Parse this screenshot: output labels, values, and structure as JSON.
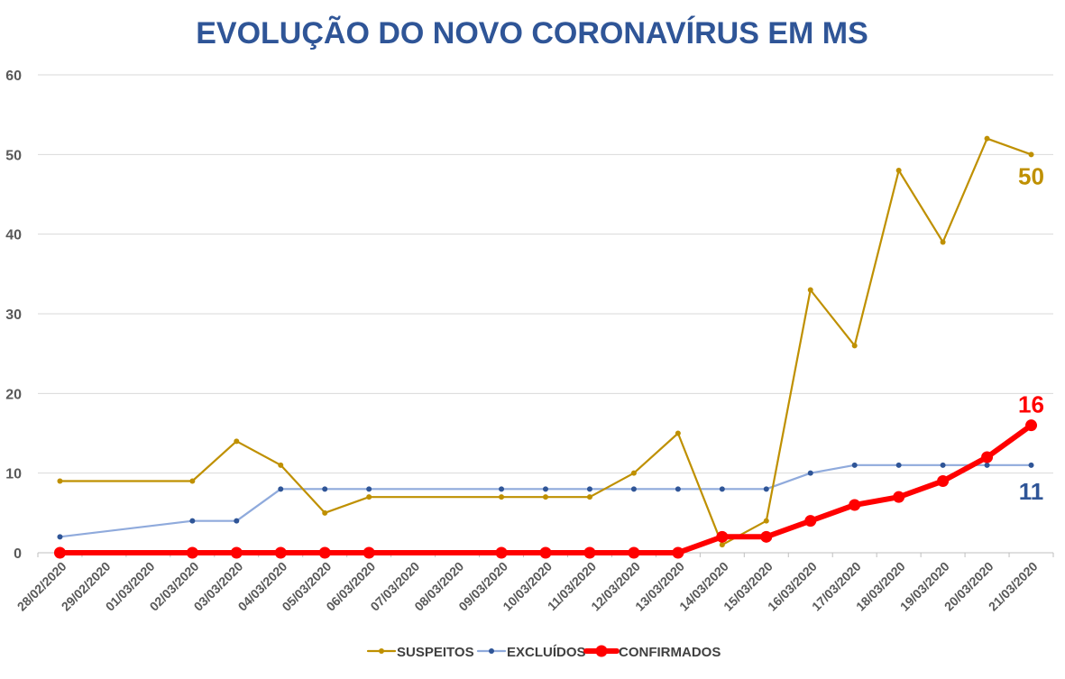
{
  "chart_data": {
    "type": "line",
    "title": "EVOLUÇÃO DO NOVO CORONAVÍRUS EM MS",
    "xlabel": "",
    "ylabel": "",
    "ylim": [
      0,
      60
    ],
    "yticks": [
      0,
      10,
      20,
      30,
      40,
      50,
      60
    ],
    "grid": true,
    "legend_position": "bottom",
    "categories": [
      "28/02/2020",
      "29/02/2020",
      "01/03/2020",
      "02/03/2020",
      "03/03/2020",
      "04/03/2020",
      "05/03/2020",
      "06/03/2020",
      "07/03/2020",
      "08/03/2020",
      "09/03/2020",
      "10/03/2020",
      "11/03/2020",
      "12/03/2020",
      "13/03/2020",
      "14/03/2020",
      "15/03/2020",
      "16/03/2020",
      "17/03/2020",
      "18/03/2020",
      "19/03/2020",
      "20/03/2020",
      "21/03/2020"
    ],
    "series": [
      {
        "name": "SUSPEITOS",
        "color": "#bf9000",
        "values": [
          9,
          null,
          null,
          9,
          14,
          11,
          5,
          7,
          null,
          null,
          7,
          7,
          7,
          10,
          15,
          1,
          4,
          33,
          26,
          48,
          39,
          52,
          50
        ],
        "end_label": "50"
      },
      {
        "name": "EXCLUÍDOS",
        "color": "#8faadc",
        "values": [
          2,
          null,
          null,
          4,
          4,
          8,
          8,
          8,
          null,
          null,
          8,
          8,
          8,
          8,
          8,
          8,
          8,
          10,
          11,
          11,
          11,
          11,
          11
        ],
        "end_label": "11",
        "end_label_color": "#2f5597"
      },
      {
        "name": "CONFIRMADOS",
        "color": "#ff0000",
        "values": [
          0,
          null,
          null,
          0,
          0,
          0,
          0,
          0,
          null,
          null,
          0,
          0,
          0,
          0,
          0,
          2,
          2,
          4,
          6,
          7,
          9,
          12,
          16
        ],
        "end_label": "16"
      }
    ]
  }
}
